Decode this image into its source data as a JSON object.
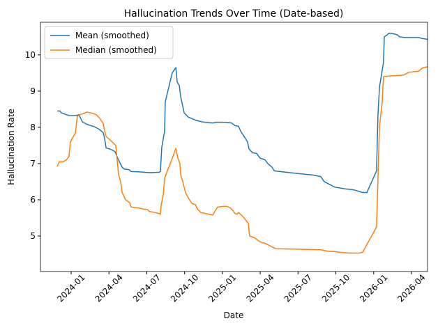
{
  "chart_data": {
    "type": "line",
    "title": "Hallucination Trends Over Time (Date-based)",
    "x_label": "Date",
    "y_label": "Hallucination Rate",
    "xlim": [
      2023.797,
      2026.356
    ],
    "ylim": [
      4.02,
      10.9
    ],
    "xticks": [
      {
        "value": 2024.0,
        "label": "2024-01"
      },
      {
        "value": 2024.25,
        "label": "2024-04"
      },
      {
        "value": 2024.5,
        "label": "2024-07"
      },
      {
        "value": 2024.75,
        "label": "2024-10"
      },
      {
        "value": 2025.0,
        "label": "2025-01"
      },
      {
        "value": 2025.25,
        "label": "2025-04"
      },
      {
        "value": 2025.5,
        "label": "2025-07"
      },
      {
        "value": 2025.75,
        "label": "2025-10"
      },
      {
        "value": 2026.0,
        "label": "2026-01"
      },
      {
        "value": 2026.25,
        "label": "2026-04"
      }
    ],
    "yticks": [
      5,
      6,
      7,
      8,
      9,
      10
    ],
    "legend": "upper left",
    "series": [
      {
        "name": "Mean (smoothed)",
        "color": "#1f77b4",
        "x": [
          2023.908,
          2023.926,
          2023.935,
          2023.968,
          2023.991,
          2024.037,
          2024.051,
          2024.074,
          2024.106,
          2024.152,
          2024.184,
          2024.212,
          2024.221,
          2024.231,
          2024.258,
          2024.29,
          2024.313,
          2024.337,
          2024.35,
          2024.383,
          2024.396,
          2024.452,
          2024.521,
          2024.581,
          2024.59,
          2024.599,
          2024.618,
          2024.622,
          2024.668,
          2024.692,
          2024.701,
          2024.715,
          2024.724,
          2024.747,
          2024.775,
          2024.821,
          2024.867,
          2024.936,
          2024.959,
          2025.028,
          2025.06,
          2025.083,
          2025.106,
          2025.12,
          2025.143,
          2025.166,
          2025.176,
          2025.199,
          2025.226,
          2025.249,
          2025.282,
          2025.3,
          2025.328,
          2025.342,
          2025.42,
          2025.512,
          2025.604,
          2025.65,
          2025.673,
          2025.697,
          2025.743,
          2025.812,
          2025.858,
          2025.881,
          2025.904,
          2025.927,
          2025.955,
          2026.019,
          2026.028,
          2026.038,
          2026.065,
          2026.07,
          2026.088,
          2026.102,
          2026.134,
          2026.157,
          2026.171,
          2026.204,
          2026.25,
          2026.296,
          2026.323,
          2026.356
        ],
        "values": [
          8.45,
          8.45,
          8.4,
          8.35,
          8.32,
          8.33,
          8.35,
          8.15,
          8.08,
          8.02,
          7.95,
          7.85,
          7.7,
          7.43,
          7.4,
          7.33,
          7.1,
          6.9,
          6.85,
          6.83,
          6.78,
          6.77,
          6.75,
          6.76,
          6.78,
          7.45,
          7.9,
          8.7,
          9.5,
          9.65,
          9.25,
          9.15,
          8.85,
          8.4,
          8.28,
          8.2,
          8.15,
          8.12,
          8.14,
          8.14,
          8.12,
          8.05,
          8.03,
          7.9,
          7.75,
          7.6,
          7.4,
          7.3,
          7.28,
          7.15,
          7.1,
          7.0,
          6.9,
          6.8,
          6.76,
          6.72,
          6.68,
          6.64,
          6.5,
          6.45,
          6.35,
          6.3,
          6.28,
          6.26,
          6.23,
          6.2,
          6.2,
          6.8,
          8.3,
          9.1,
          9.8,
          10.5,
          10.55,
          10.6,
          10.58,
          10.55,
          10.5,
          10.48,
          10.48,
          10.48,
          10.45,
          10.43
        ]
      },
      {
        "name": "Median (smoothed)",
        "color": "#ff7f0e",
        "x": [
          2023.908,
          2023.922,
          2023.945,
          2023.968,
          2023.986,
          2023.995,
          2024.028,
          2024.041,
          2024.055,
          2024.083,
          2024.101,
          2024.129,
          2024.166,
          2024.189,
          2024.212,
          2024.221,
          2024.231,
          2024.258,
          2024.295,
          2024.313,
          2024.327,
          2024.337,
          2024.36,
          2024.387,
          2024.396,
          2024.452,
          2024.507,
          2024.516,
          2024.553,
          2024.581,
          2024.59,
          2024.595,
          2024.609,
          2024.618,
          2024.627,
          2024.655,
          2024.673,
          2024.692,
          2024.705,
          2024.719,
          2024.724,
          2024.738,
          2024.756,
          2024.775,
          2024.798,
          2024.821,
          2024.834,
          2024.857,
          2024.89,
          2024.936,
          2024.95,
          2024.968,
          2025.005,
          2025.028,
          2025.051,
          2025.07,
          2025.083,
          2025.097,
          2025.106,
          2025.12,
          2025.143,
          2025.171,
          2025.18,
          2025.212,
          2025.235,
          2025.259,
          2025.282,
          2025.328,
          2025.351,
          2025.466,
          2025.558,
          2025.65,
          2025.697,
          2025.743,
          2025.779,
          2025.835,
          2025.904,
          2025.927,
          2026.019,
          2026.038,
          2026.056,
          2026.065,
          2026.111,
          2026.157,
          2026.204,
          2026.231,
          2026.296,
          2026.311,
          2026.328,
          2026.356
        ],
        "values": [
          6.92,
          7.05,
          7.05,
          7.1,
          7.2,
          7.6,
          7.85,
          8.3,
          8.35,
          8.38,
          8.42,
          8.4,
          8.35,
          8.25,
          8.1,
          7.9,
          7.75,
          7.65,
          7.5,
          6.7,
          6.5,
          6.2,
          6.0,
          5.92,
          5.8,
          5.77,
          5.72,
          5.68,
          5.65,
          5.62,
          5.6,
          5.85,
          6.15,
          6.6,
          6.7,
          7.0,
          7.2,
          7.42,
          7.15,
          7.0,
          6.7,
          6.5,
          6.2,
          6.05,
          5.9,
          5.87,
          5.75,
          5.65,
          5.62,
          5.58,
          5.68,
          5.8,
          5.82,
          5.82,
          5.78,
          5.7,
          5.62,
          5.6,
          5.65,
          5.6,
          5.5,
          5.35,
          5.0,
          4.95,
          4.88,
          4.82,
          4.8,
          4.7,
          4.65,
          4.64,
          4.63,
          4.62,
          4.58,
          4.57,
          4.55,
          4.53,
          4.53,
          4.55,
          5.25,
          8.0,
          8.7,
          9.4,
          9.42,
          9.43,
          9.45,
          9.52,
          9.55,
          9.6,
          9.65,
          9.67
        ]
      }
    ]
  }
}
